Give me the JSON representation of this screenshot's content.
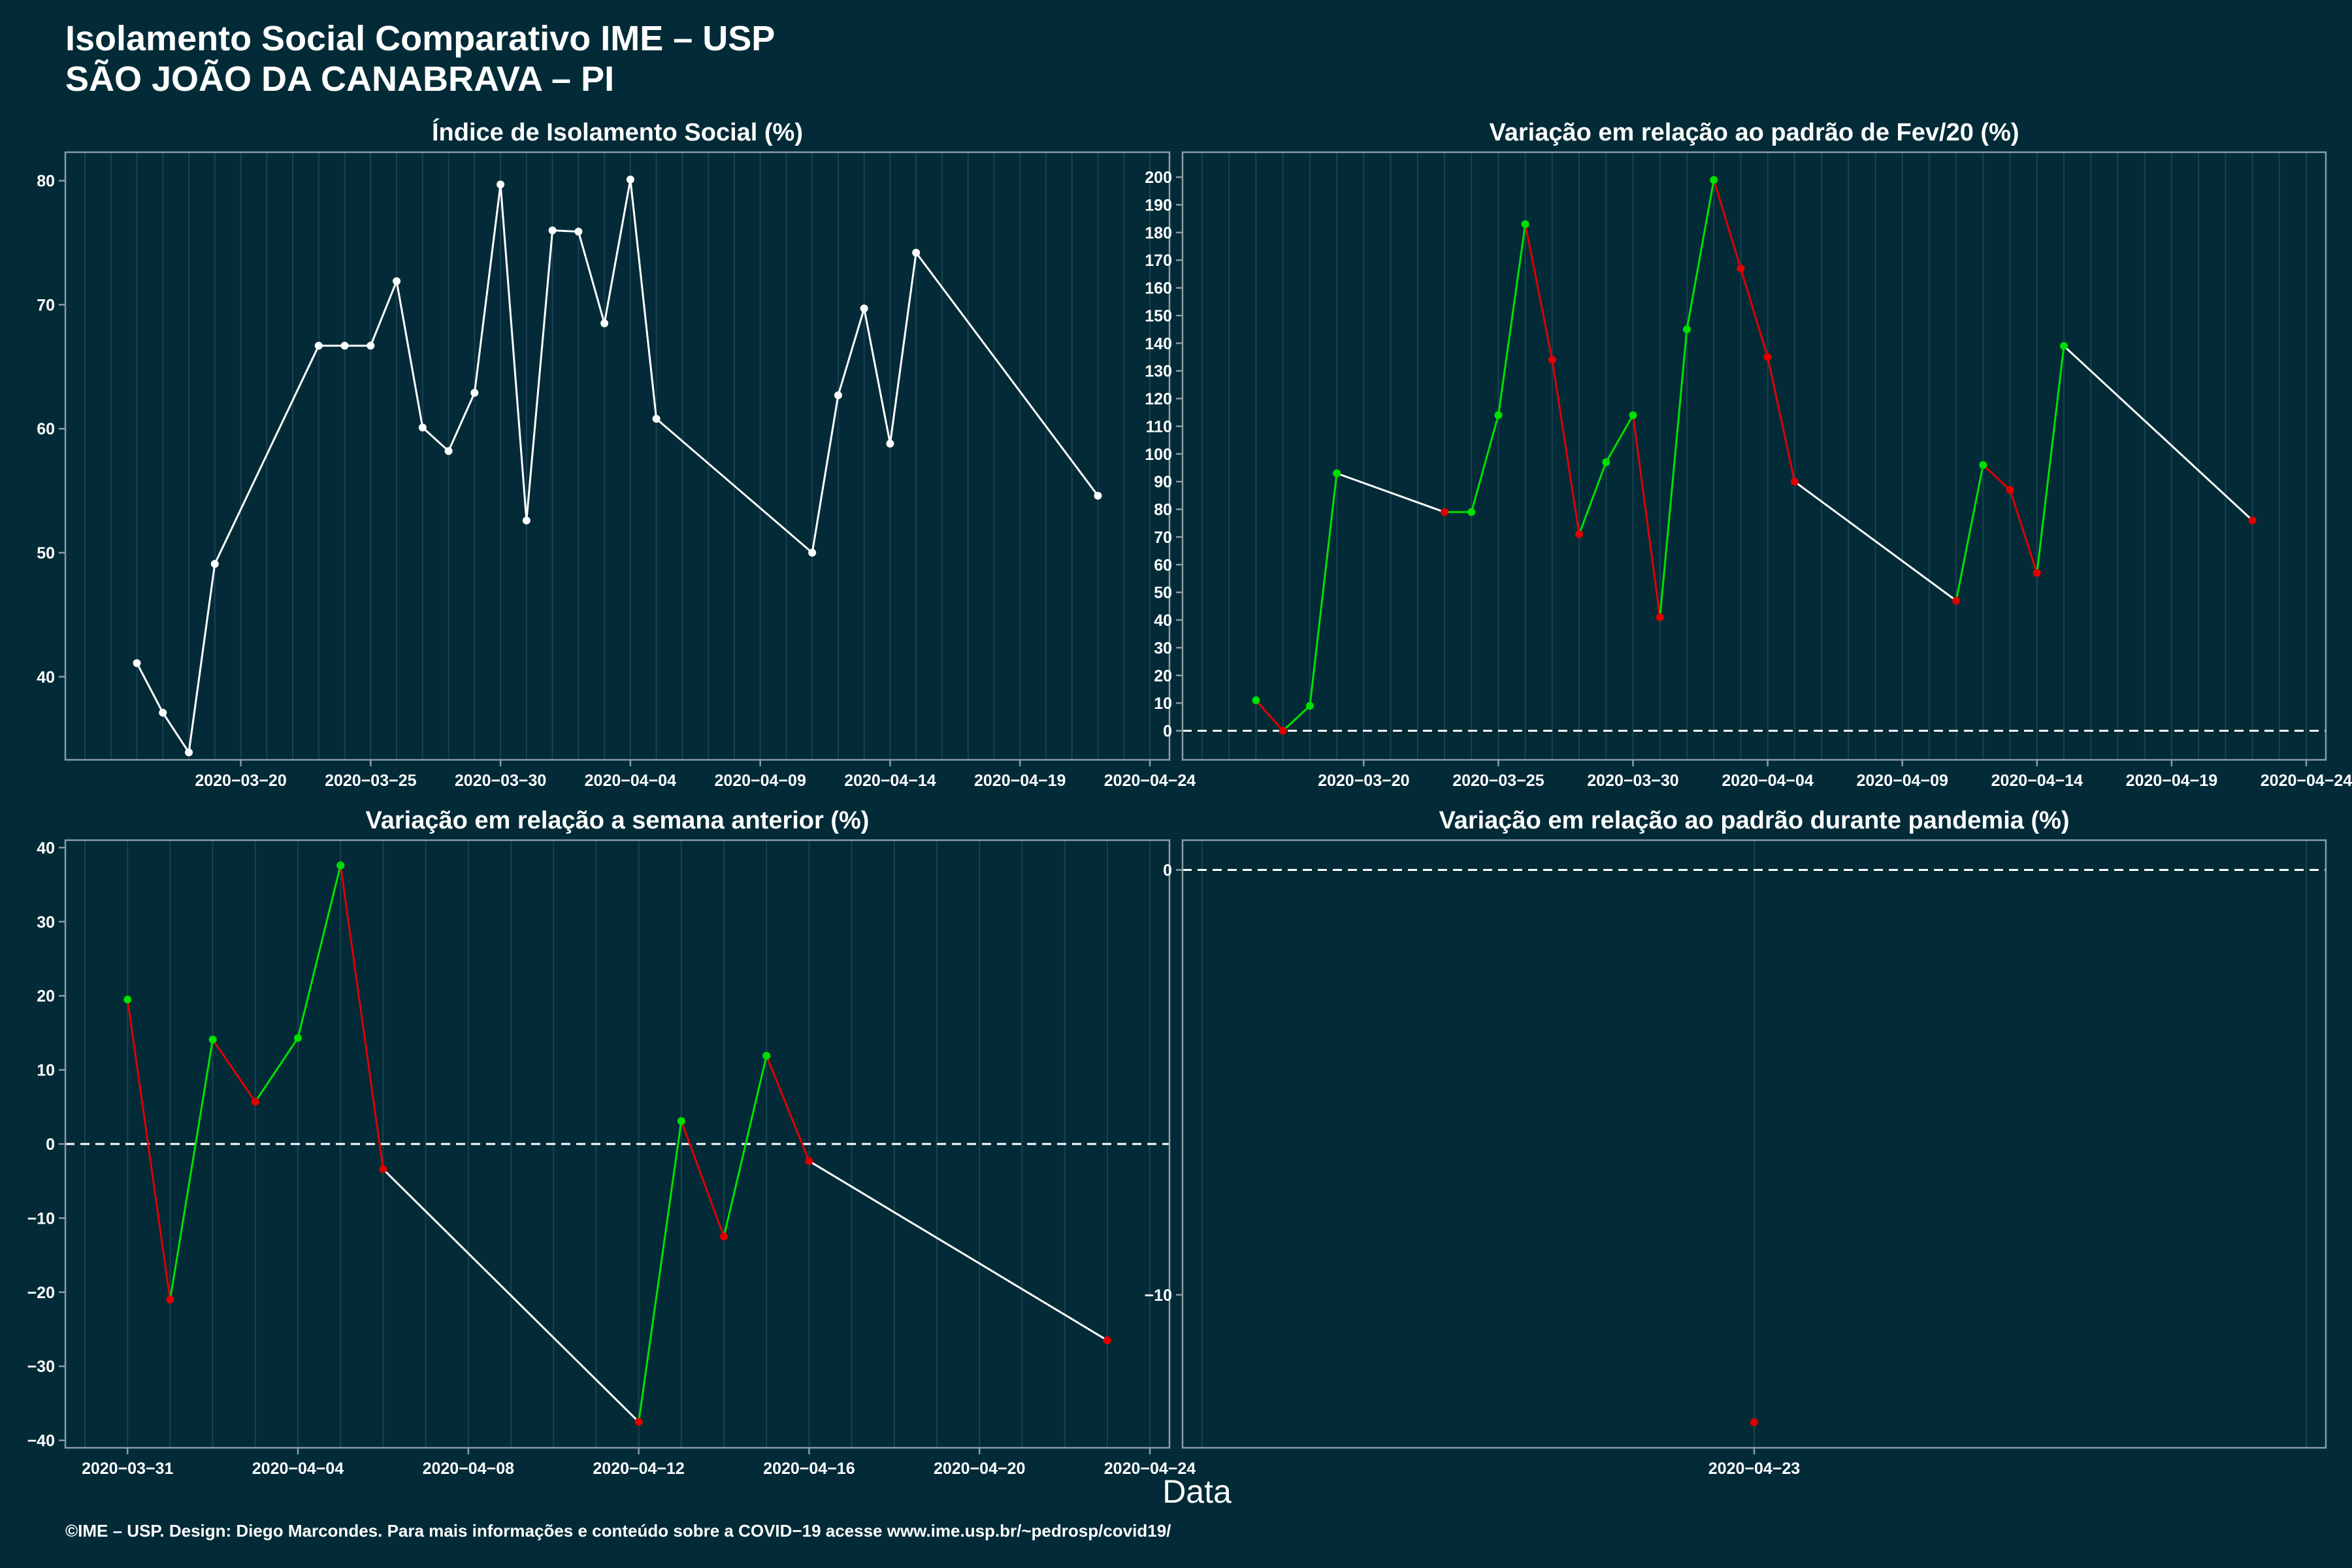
{
  "header": {
    "title_line1": "Isolamento Social Comparativo IME – USP",
    "title_line2": "SÃO JOÃO DA CANABRAVA – PI"
  },
  "x_axis_label": "Data",
  "caption": "©IME – USP. Design: Diego Marcondes. Para mais informações e conteúdo sobre a COVID−19 acesse www.ime.usp.br/~pedrosp/covid19/",
  "colors": {
    "background": "#022b37",
    "line": "#ffffff",
    "increase": "#00e000",
    "decrease": "#e00000",
    "grid": "#1b4250",
    "frame": "#8a9ca3"
  },
  "chart_data": [
    {
      "type": "line",
      "title": "Índice de Isolamento Social (%)",
      "xlabel": "Data",
      "ylabel": "",
      "x_ticks": [
        "2020-03-20",
        "2020-03-25",
        "2020-03-30",
        "2020-04-04",
        "2020-04-09",
        "2020-04-14",
        "2020-04-19",
        "2020-04-24"
      ],
      "y_ticks": [
        40,
        50,
        60,
        70,
        80
      ],
      "xlim": [
        "2020-03-14",
        "2020-04-24"
      ],
      "ylim": [
        33.3,
        82.3
      ],
      "color_mode": "white",
      "points": [
        {
          "x": "2020-03-16",
          "y": 41.1
        },
        {
          "x": "2020-03-17",
          "y": 37.1
        },
        {
          "x": "2020-03-18",
          "y": 33.9
        },
        {
          "x": "2020-03-19",
          "y": 49.1
        },
        {
          "x": "2020-03-23",
          "y": 66.7
        },
        {
          "x": "2020-03-24",
          "y": 66.7
        },
        {
          "x": "2020-03-25",
          "y": 66.7
        },
        {
          "x": "2020-03-26",
          "y": 71.9
        },
        {
          "x": "2020-03-27",
          "y": 60.1
        },
        {
          "x": "2020-03-28",
          "y": 58.2
        },
        {
          "x": "2020-03-29",
          "y": 62.9
        },
        {
          "x": "2020-03-30",
          "y": 79.7
        },
        {
          "x": "2020-03-31",
          "y": 52.6
        },
        {
          "x": "2020-04-01",
          "y": 76.0
        },
        {
          "x": "2020-04-02",
          "y": 75.9
        },
        {
          "x": "2020-04-03",
          "y": 68.5
        },
        {
          "x": "2020-04-04",
          "y": 80.1
        },
        {
          "x": "2020-04-05",
          "y": 60.8
        },
        {
          "x": "2020-04-11",
          "y": 50.0
        },
        {
          "x": "2020-04-12",
          "y": 62.7
        },
        {
          "x": "2020-04-13",
          "y": 69.7
        },
        {
          "x": "2020-04-14",
          "y": 58.8
        },
        {
          "x": "2020-04-15",
          "y": 74.2
        },
        {
          "x": "2020-04-22",
          "y": 54.6
        }
      ]
    },
    {
      "type": "line",
      "title": "Variação em relação ao padrão de Fev/20 (%)",
      "xlabel": "Data",
      "ylabel": "",
      "x_ticks": [
        "2020-03-20",
        "2020-03-25",
        "2020-03-30",
        "2020-04-04",
        "2020-04-09",
        "2020-04-14",
        "2020-04-19",
        "2020-04-24"
      ],
      "y_ticks": [
        0,
        10,
        20,
        30,
        40,
        50,
        60,
        70,
        80,
        90,
        100,
        110,
        120,
        130,
        140,
        150,
        160,
        170,
        180,
        190,
        200
      ],
      "xlim": [
        "2020-03-14",
        "2020-04-24"
      ],
      "ylim": [
        -10.5,
        209
      ],
      "color_mode": "change",
      "reference_line": 0,
      "points": [
        {
          "x": "2020-03-16",
          "y": 11
        },
        {
          "x": "2020-03-17",
          "y": 0
        },
        {
          "x": "2020-03-18",
          "y": 9
        },
        {
          "x": "2020-03-19",
          "y": 93
        },
        {
          "x": "2020-03-23",
          "y": 79
        },
        {
          "x": "2020-03-24",
          "y": 79
        },
        {
          "x": "2020-03-25",
          "y": 114
        },
        {
          "x": "2020-03-26",
          "y": 183
        },
        {
          "x": "2020-03-27",
          "y": 134
        },
        {
          "x": "2020-03-28",
          "y": 71
        },
        {
          "x": "2020-03-29",
          "y": 97
        },
        {
          "x": "2020-03-30",
          "y": 114
        },
        {
          "x": "2020-03-31",
          "y": 41
        },
        {
          "x": "2020-04-01",
          "y": 145
        },
        {
          "x": "2020-04-02",
          "y": 199
        },
        {
          "x": "2020-04-03",
          "y": 167
        },
        {
          "x": "2020-04-04",
          "y": 135
        },
        {
          "x": "2020-04-05",
          "y": 90
        },
        {
          "x": "2020-04-11",
          "y": 47
        },
        {
          "x": "2020-04-12",
          "y": 96
        },
        {
          "x": "2020-04-13",
          "y": 87
        },
        {
          "x": "2020-04-14",
          "y": 57
        },
        {
          "x": "2020-04-15",
          "y": 139
        },
        {
          "x": "2020-04-22",
          "y": 76
        }
      ]
    },
    {
      "type": "line",
      "title": "Variação em relação a semana anterior (%)",
      "xlabel": "Data",
      "ylabel": "",
      "x_ticks": [
        "2020-03-31",
        "2020-04-04",
        "2020-04-08",
        "2020-04-12",
        "2020-04-16",
        "2020-04-20",
        "2020-04-24"
      ],
      "y_ticks": [
        -40,
        -30,
        -20,
        -10,
        0,
        10,
        20,
        30,
        40
      ],
      "xlim": [
        "2020-03-30",
        "2020-04-24"
      ],
      "ylim": [
        -41,
        41
      ],
      "color_mode": "change",
      "reference_line": 0,
      "points": [
        {
          "x": "2020-03-31",
          "y": 19.5
        },
        {
          "x": "2020-04-01",
          "y": -21.0
        },
        {
          "x": "2020-04-02",
          "y": 14.1
        },
        {
          "x": "2020-04-03",
          "y": 5.7
        },
        {
          "x": "2020-04-04",
          "y": 14.3
        },
        {
          "x": "2020-04-05",
          "y": 37.6
        },
        {
          "x": "2020-04-06",
          "y": -3.4
        },
        {
          "x": "2020-04-12",
          "y": -37.5
        },
        {
          "x": "2020-04-13",
          "y": 3.1
        },
        {
          "x": "2020-04-14",
          "y": -12.5
        },
        {
          "x": "2020-04-15",
          "y": 11.9
        },
        {
          "x": "2020-04-16",
          "y": -2.3
        },
        {
          "x": "2020-04-23",
          "y": -26.5
        }
      ]
    },
    {
      "type": "scatter",
      "title": "Variação em relação ao padrão durante pandemia (%)",
      "xlabel": "Data",
      "ylabel": "",
      "x_ticks": [
        "2020-04-23"
      ],
      "y_ticks": [
        -10,
        0
      ],
      "xlim": [
        "2020-04-22",
        "2020-04-24"
      ],
      "ylim": [
        -13.6,
        0.7
      ],
      "color_mode": "change",
      "reference_line": 0,
      "points": [
        {
          "x": "2020-04-23",
          "y": -13
        }
      ]
    }
  ]
}
